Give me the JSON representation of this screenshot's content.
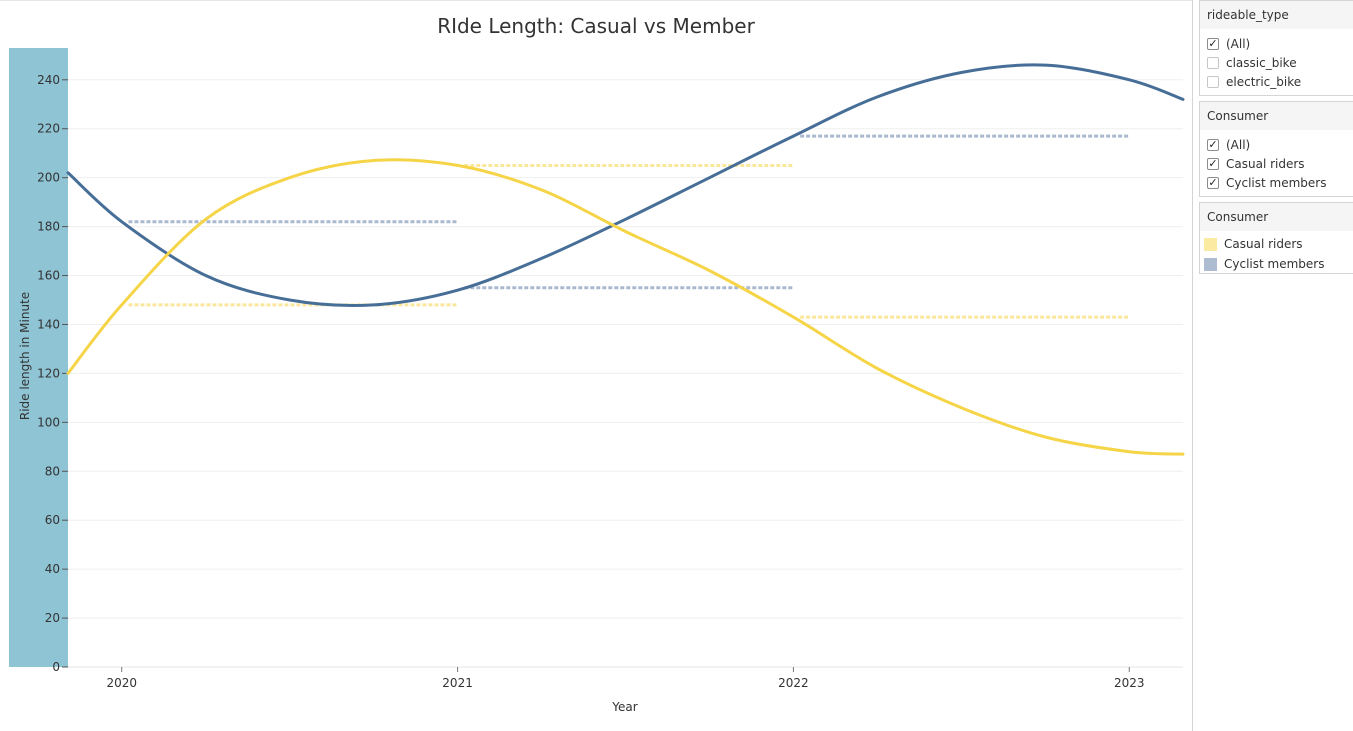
{
  "title": "RIde Length: Casual vs Member",
  "chart_data": {
    "type": "line",
    "title": "RIde Length: Casual vs Member",
    "xlabel": "Year",
    "ylabel": "Ride length in Minute",
    "x_ticks": [
      "2020",
      "2021",
      "2022",
      "2023"
    ],
    "y_ticks": [
      0,
      20,
      40,
      60,
      80,
      100,
      120,
      140,
      160,
      180,
      200,
      220,
      240
    ],
    "ylim": [
      0,
      253
    ],
    "xlim": [
      2019.84,
      2023.16
    ],
    "grid": true,
    "series": [
      {
        "name": "Casual riders",
        "color": "#f5d547",
        "curve_x": [
          2019.84,
          2020.0,
          2020.25,
          2020.5,
          2020.75,
          2021.0,
          2021.25,
          2021.5,
          2021.75,
          2022.0,
          2022.25,
          2022.5,
          2022.75,
          2023.0,
          2023.16
        ],
        "curve_y": [
          120,
          148,
          183,
          200,
          207,
          205,
          195,
          178,
          162,
          143,
          122,
          106,
          94,
          88,
          87
        ],
        "yearly_avg": [
          {
            "from": 2020.02,
            "to": 2021.0,
            "value": 148
          },
          {
            "from": 2021.02,
            "to": 2022.0,
            "value": 205
          },
          {
            "from": 2022.02,
            "to": 2023.0,
            "value": 143
          }
        ]
      },
      {
        "name": "Cyclist members",
        "color": "#466e97",
        "curve_x": [
          2019.84,
          2020.0,
          2020.25,
          2020.5,
          2020.75,
          2021.0,
          2021.25,
          2021.5,
          2021.75,
          2022.0,
          2022.25,
          2022.5,
          2022.75,
          2023.0,
          2023.16
        ],
        "curve_y": [
          202,
          182,
          160,
          150,
          148,
          154,
          167,
          183,
          200,
          217,
          233,
          243,
          246,
          240,
          232
        ],
        "yearly_avg": [
          {
            "from": 2020.02,
            "to": 2021.0,
            "value": 182
          },
          {
            "from": 2021.02,
            "to": 2022.0,
            "value": 155
          },
          {
            "from": 2022.02,
            "to": 2023.0,
            "value": 217
          }
        ]
      }
    ]
  },
  "filters": [
    {
      "title": "rideable_type",
      "options": [
        {
          "label": "(All)",
          "checked": true
        },
        {
          "label": "classic_bike",
          "checked": false
        },
        {
          "label": "electric_bike",
          "checked": false
        }
      ]
    },
    {
      "title": "Consumer",
      "options": [
        {
          "label": "(All)",
          "checked": true
        },
        {
          "label": "Casual riders",
          "checked": true
        },
        {
          "label": "Cyclist members",
          "checked": true
        }
      ]
    }
  ],
  "legend": {
    "title": "Consumer",
    "items": [
      {
        "label": "Casual riders",
        "color": "#faeaa2"
      },
      {
        "label": "Cyclist members",
        "color": "#adbcd0"
      }
    ]
  },
  "colors": {
    "axis_band": "#8fc4d4",
    "gridline": "#efefef",
    "casual_line": "#f5d547",
    "member_line": "#466e97",
    "casual_avg": "#fae79c",
    "member_avg": "#a9b9cf"
  }
}
